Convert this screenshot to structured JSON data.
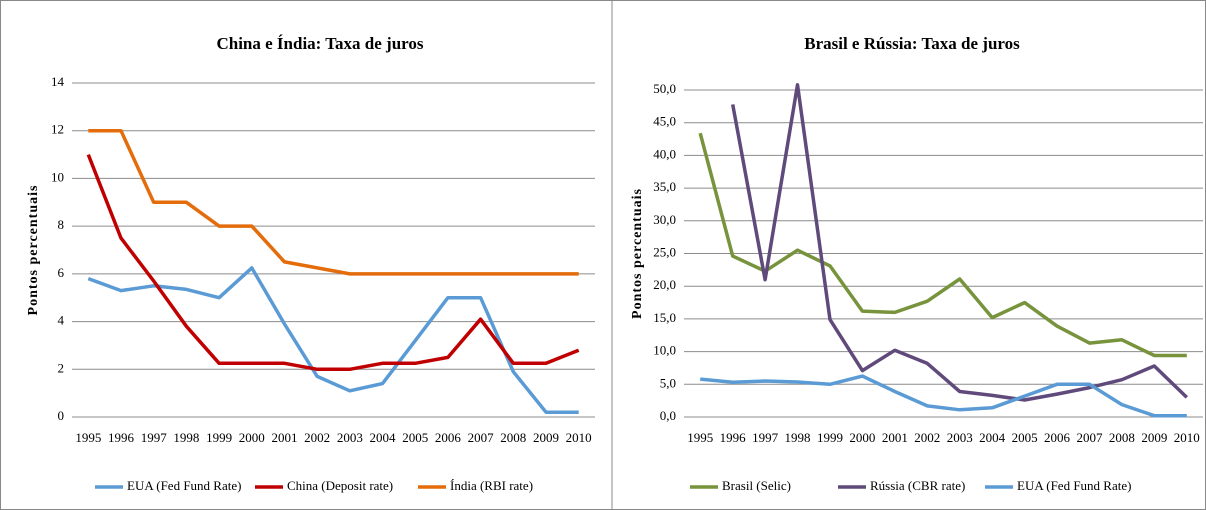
{
  "chart_data": [
    {
      "type": "line",
      "title": "China  e Índia: Taxa de juros",
      "y_label": "Pontos percentuais",
      "categories": [
        "1995",
        "1996",
        "1997",
        "1998",
        "1999",
        "2000",
        "2001",
        "2002",
        "2003",
        "2004",
        "2005",
        "2006",
        "2007",
        "2008",
        "2009",
        "2010"
      ],
      "ylim": [
        0,
        14
      ],
      "yticks": [
        0,
        2,
        4,
        6,
        8,
        10,
        12,
        14
      ],
      "grid": true,
      "series": [
        {
          "name": "EUA (Fed Fund Rate)",
          "color": "#5b9bd5",
          "values": [
            5.8,
            5.3,
            5.5,
            5.35,
            5.0,
            6.25,
            3.9,
            1.7,
            1.1,
            1.4,
            3.2,
            5.0,
            5.0,
            1.9,
            0.2,
            0.2
          ]
        },
        {
          "name": "China (Deposit rate)",
          "color": "#c00000",
          "values": [
            11,
            7.5,
            5.7,
            3.8,
            2.25,
            2.25,
            2.25,
            2.0,
            2.0,
            2.25,
            2.25,
            2.5,
            4.1,
            2.25,
            2.25,
            2.8
          ]
        },
        {
          "name": "Índia (RBI rate)",
          "color": "#e46c0a",
          "values": [
            12,
            12,
            9,
            9,
            8,
            8,
            6.5,
            6.25,
            6,
            6,
            6,
            6,
            6,
            6,
            6,
            6
          ]
        }
      ]
    },
    {
      "type": "line",
      "title": "Brasil e Rússia: Taxa de juros",
      "y_label": "Pontos percentuais",
      "categories": [
        "1995",
        "1996",
        "1997",
        "1998",
        "1999",
        "2000",
        "2001",
        "2002",
        "2003",
        "2004",
        "2005",
        "2006",
        "2007",
        "2008",
        "2009",
        "2010"
      ],
      "ylim": [
        0,
        50
      ],
      "yticks": [
        {
          "value": 0,
          "label": "0,0"
        },
        {
          "value": 5,
          "label": "5,0"
        },
        {
          "value": 10,
          "label": "10,0"
        },
        {
          "value": 15,
          "label": "15,0"
        },
        {
          "value": 20,
          "label": "20,0"
        },
        {
          "value": 25,
          "label": "25,0"
        },
        {
          "value": 30,
          "label": "30,0"
        },
        {
          "value": 35,
          "label": "35,0"
        },
        {
          "value": 40,
          "label": "40,0"
        },
        {
          "value": 45,
          "label": "45,0"
        },
        {
          "value": 50,
          "label": "50,0"
        }
      ],
      "grid": true,
      "series": [
        {
          "name": "Brasil (Selic)",
          "color": "#77933c",
          "values": [
            43.4,
            24.6,
            22.3,
            25.5,
            23.1,
            16.2,
            16.0,
            17.7,
            21.1,
            15.2,
            17.5,
            13.9,
            11.3,
            11.8,
            9.4,
            9.4
          ]
        },
        {
          "name": "Rússia (CBR rate)",
          "color": "#604a7b",
          "values": [
            null,
            47.8,
            21.0,
            50.8,
            14.9,
            7.1,
            10.2,
            8.2,
            3.9,
            3.3,
            2.6,
            3.5,
            4.5,
            5.7,
            7.8,
            3.0
          ]
        },
        {
          "name": "EUA (Fed Fund Rate)",
          "color": "#5b9bd5",
          "values": [
            5.8,
            5.3,
            5.5,
            5.35,
            5.0,
            6.25,
            3.9,
            1.7,
            1.1,
            1.4,
            3.2,
            5.0,
            5.0,
            1.9,
            0.2,
            0.2
          ]
        }
      ]
    }
  ]
}
